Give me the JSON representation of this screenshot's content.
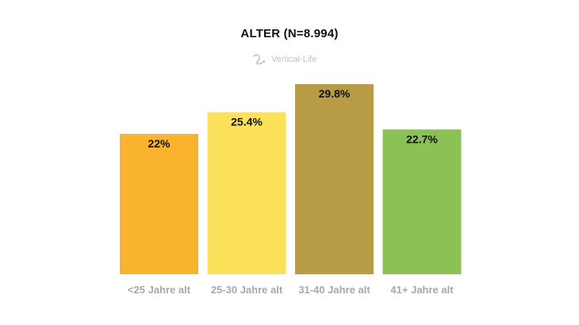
{
  "brand": {
    "watermark_text": "Vertical-Life",
    "watermark_icon": "climbing-rope-icon"
  },
  "chart_data": {
    "type": "bar",
    "title": "ALTER (N=8.994)",
    "xlabel": "",
    "ylabel": "",
    "categories": [
      "<25 Jahre alt",
      "25-30 Jahre alt",
      "31-40 Jahre alt",
      "41+ Jahre alt"
    ],
    "values": [
      22,
      25.4,
      29.8,
      22.7
    ],
    "value_labels": [
      "22%",
      "25.4%",
      "29.8%",
      "22.7%"
    ],
    "colors": [
      "#f9b32c",
      "#fbe25a",
      "#b89c45",
      "#8cc155"
    ],
    "grid": false,
    "legend": "none"
  }
}
